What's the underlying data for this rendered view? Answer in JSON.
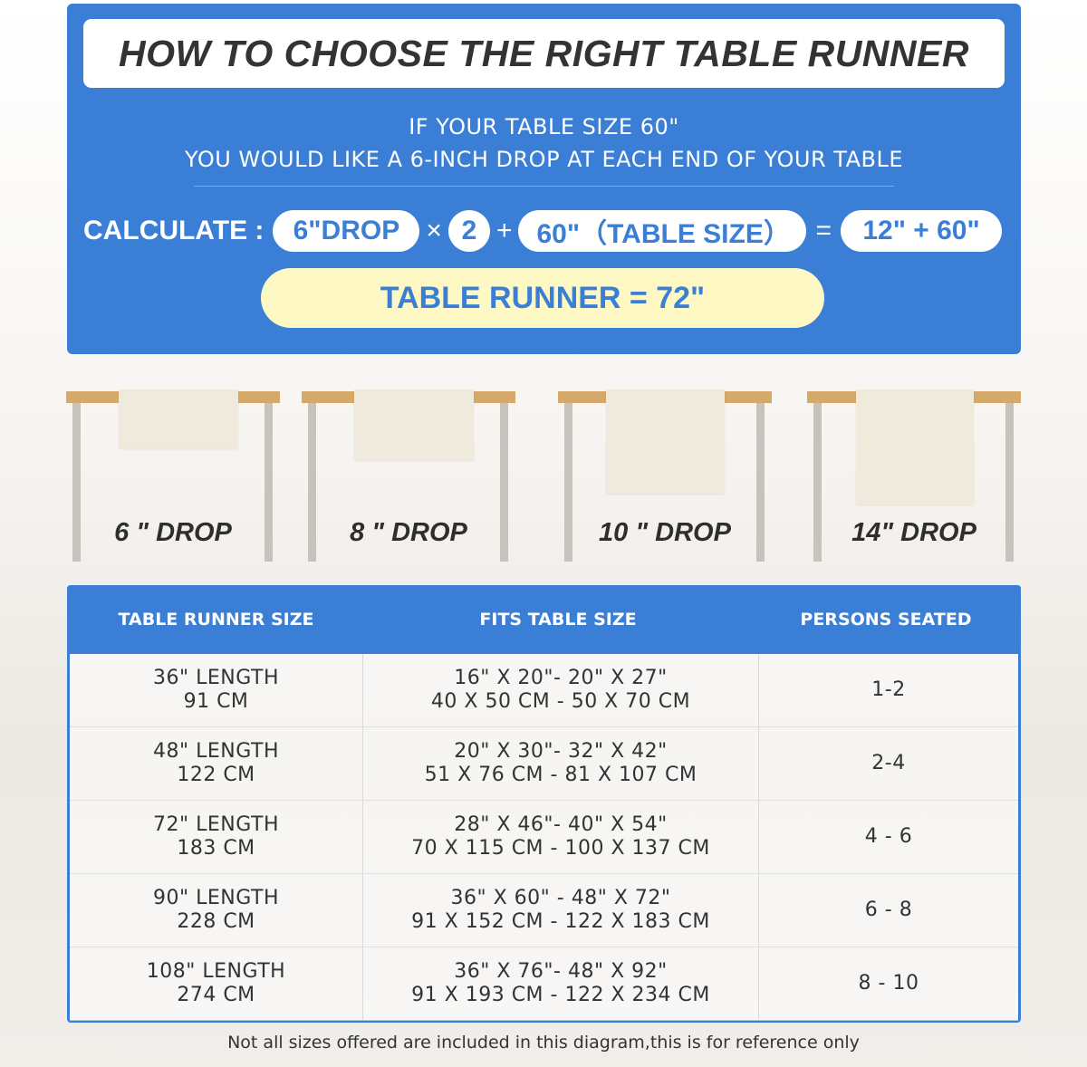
{
  "title": "HOW TO CHOOSE THE RIGHT TABLE RUNNER",
  "intro": {
    "line1": "IF YOUR TABLE SIZE 60\"",
    "line2": "YOU WOULD LIKE A 6-INCH DROP AT EACH END OF YOUR TABLE"
  },
  "calc": {
    "label": "CALCULATE :",
    "drop": "6\"DROP",
    "times": "×",
    "multiplier": "2",
    "plus": "+",
    "table": "60\"（TABLE SIZE）",
    "equals": "=",
    "sum": "12\" + 60\"",
    "result": "TABLE RUNNER = 72\""
  },
  "drops": [
    {
      "label": "6 \" DROP",
      "inches": 6
    },
    {
      "label": "8 \" DROP",
      "inches": 8
    },
    {
      "label": "10 \" DROP",
      "inches": 10
    },
    {
      "label": "14\" DROP",
      "inches": 14
    }
  ],
  "colors": {
    "brand_blue": "#3a7fd5",
    "highlight_yellow": "#fdf8c4",
    "table_wood": "#d4a96a",
    "runner": "#efeadb"
  },
  "size_table": {
    "headers": [
      "TABLE RUNNER SIZE",
      "FITS TABLE SIZE",
      "PERSONS SEATED"
    ],
    "rows": [
      {
        "runner": [
          "36\" LENGTH",
          "91 CM"
        ],
        "fits": [
          "16\" X 20\"- 20\" X 27\"",
          "40 X 50 CM - 50 X 70 CM"
        ],
        "persons": "1-2"
      },
      {
        "runner": [
          "48\" LENGTH",
          "122 CM"
        ],
        "fits": [
          "20\" X 30\"- 32\" X 42\"",
          "51 X 76 CM - 81 X 107 CM"
        ],
        "persons": "2-4"
      },
      {
        "runner": [
          "72\" LENGTH",
          "183 CM"
        ],
        "fits": [
          "28\" X 46\"- 40\" X 54\"",
          "70 X 115 CM - 100 X 137 CM"
        ],
        "persons": "4 - 6"
      },
      {
        "runner": [
          "90\" LENGTH",
          "228 CM"
        ],
        "fits": [
          "36\" X 60\" - 48\" X 72\"",
          "91 X 152 CM - 122 X 183 CM"
        ],
        "persons": "6 - 8"
      },
      {
        "runner": [
          "108\" LENGTH",
          "274 CM"
        ],
        "fits": [
          "36\" X 76\"- 48\" X 92\"",
          "91 X 193 CM - 122 X 234 CM"
        ],
        "persons": "8 - 10"
      }
    ]
  },
  "footnote": "Not all sizes offered are included in this diagram,this is for reference only"
}
